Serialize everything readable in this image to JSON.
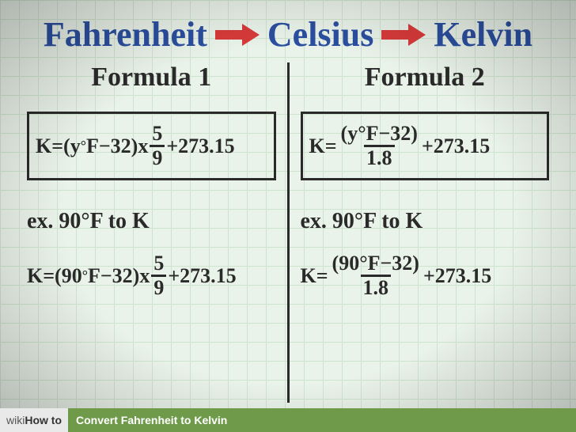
{
  "colors": {
    "title": "#2b4fa0",
    "arrow": "#d83a3a",
    "ink": "#2a2a2a",
    "paper": "#eaf3ea",
    "grid": "#cfe4ce",
    "footer_bg": "#6f9a4a",
    "footer_text": "#ffffff",
    "footer_left_bg": "#e9e9e9"
  },
  "title": {
    "seg1": "Fahrenheit",
    "seg2": "Celsius",
    "seg3": "Kelvin",
    "fontsize": 44
  },
  "formula1": {
    "header": "Formula 1",
    "eq": {
      "lhs": "K=(y",
      "deg": "°",
      "after_deg": "F−32)x",
      "frac_num": "5",
      "frac_den": "9",
      "tail": "+273.15"
    },
    "example_label": "ex. 90°F to K",
    "example": {
      "lhs": "K=(90",
      "deg": "°",
      "after_deg": "F−32)x",
      "frac_num": "5",
      "frac_den": "9",
      "tail": "+273.15"
    }
  },
  "formula2": {
    "header": "Formula 2",
    "eq": {
      "lhs": "K=",
      "frac_num": "(y°F−32)",
      "frac_den": "1.8",
      "tail": "+273.15"
    },
    "example_label": "ex. 90°F to K",
    "example": {
      "lhs": "K=",
      "frac_num": "(90°F−32)",
      "frac_den": "1.8",
      "tail": "+273.15"
    }
  },
  "footer": {
    "brand_prefix": "wiki",
    "brand_suffix": "How to ",
    "title": "Convert Fahrenheit to Kelvin"
  }
}
